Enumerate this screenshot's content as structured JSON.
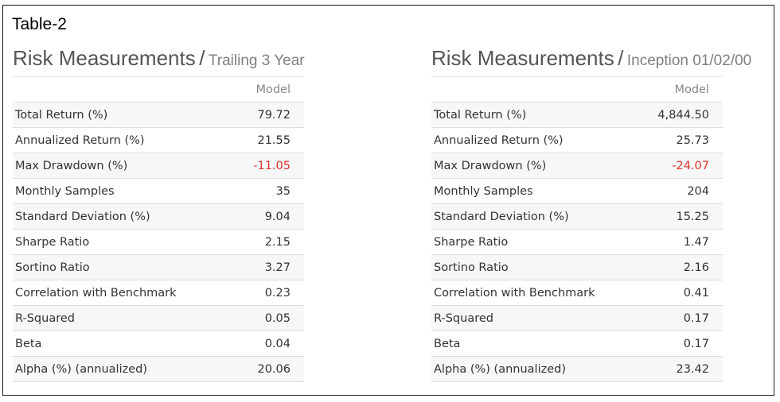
{
  "table_label": "Table-2",
  "colors": {
    "negative": "#e0302a",
    "heading": "#555555",
    "subheading": "#808080"
  },
  "left": {
    "title": "Risk Measurements",
    "separator": "/",
    "subtitle": "Trailing 3 Year",
    "column_header": "Model",
    "rows": [
      {
        "label": "Total Return (%)",
        "value": "79.72"
      },
      {
        "label": "Annualized Return (%)",
        "value": "21.55"
      },
      {
        "label": "Max Drawdown (%)",
        "value": "-11.05"
      },
      {
        "label": "Monthly Samples",
        "value": "35"
      },
      {
        "label": "Standard Deviation (%)",
        "value": "9.04"
      },
      {
        "label": "Sharpe Ratio",
        "value": "2.15"
      },
      {
        "label": "Sortino Ratio",
        "value": "3.27"
      },
      {
        "label": "Correlation with Benchmark",
        "value": "0.23"
      },
      {
        "label": "R-Squared",
        "value": "0.05"
      },
      {
        "label": "Beta",
        "value": "0.04"
      },
      {
        "label": "Alpha (%) (annualized)",
        "value": "20.06"
      }
    ]
  },
  "right": {
    "title": "Risk Measurements",
    "separator": "/",
    "subtitle": "Inception 01/02/00",
    "column_header": "Model",
    "rows": [
      {
        "label": "Total Return (%)",
        "value": "4,844.50"
      },
      {
        "label": "Annualized Return (%)",
        "value": "25.73"
      },
      {
        "label": "Max Drawdown (%)",
        "value": "-24.07"
      },
      {
        "label": "Monthly Samples",
        "value": "204"
      },
      {
        "label": "Standard Deviation (%)",
        "value": "15.25"
      },
      {
        "label": "Sharpe Ratio",
        "value": "1.47"
      },
      {
        "label": "Sortino Ratio",
        "value": "2.16"
      },
      {
        "label": "Correlation with Benchmark",
        "value": "0.41"
      },
      {
        "label": "R-Squared",
        "value": "0.17"
      },
      {
        "label": "Beta",
        "value": "0.17"
      },
      {
        "label": "Alpha (%) (annualized)",
        "value": "23.42"
      }
    ]
  }
}
